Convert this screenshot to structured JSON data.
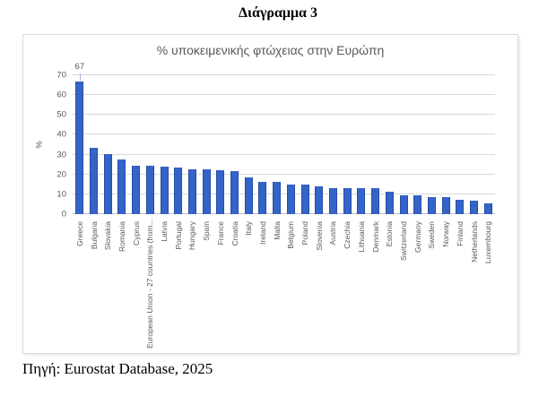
{
  "heading": "Διάγραμμα 3",
  "source": "Πηγή: Eurostat Database, 2025",
  "chart_data": {
    "type": "bar",
    "title": "% υποκειμενικής φτώχειας στην Ευρώπη",
    "xlabel": "",
    "ylabel": "%",
    "ylim": [
      0,
      70
    ],
    "yticks": [
      0,
      10,
      20,
      30,
      40,
      50,
      60,
      70
    ],
    "grid": true,
    "legend": "none",
    "bar_color": "#3464c8",
    "bar_edge_color": "#254ea6",
    "gridline_color": "#d9d9d9",
    "axis_text_color": "#595959",
    "categories": [
      "Greece",
      "Bulgaria",
      "Slovakia",
      "Romania",
      "Cyprus",
      "European Union - 27 countries (from…",
      "Latvia",
      "Portugal",
      "Hungary",
      "Spain",
      "France",
      "Croatia",
      "Italy",
      "Ireland",
      "Malta",
      "Belgium",
      "Poland",
      "Slovenia",
      "Austria",
      "Czechia",
      "Lithuania",
      "Denmark",
      "Estonia",
      "Switzerland",
      "Germany",
      "Sweden",
      "Norway",
      "Finland",
      "Netherlands",
      "Luxembourg"
    ],
    "values": [
      67,
      33.4,
      30.2,
      27.5,
      24.3,
      24.2,
      24.1,
      23.6,
      22.7,
      22.4,
      22.1,
      21.8,
      18.6,
      16.4,
      16.4,
      14.9,
      14.7,
      14.1,
      13.3,
      13.3,
      13.0,
      12.9,
      11.1,
      9.4,
      9.4,
      8.8,
      8.8,
      7.1,
      7.0,
      5.5
    ],
    "data_labels": [
      {
        "index": 0,
        "text": "67"
      }
    ]
  }
}
